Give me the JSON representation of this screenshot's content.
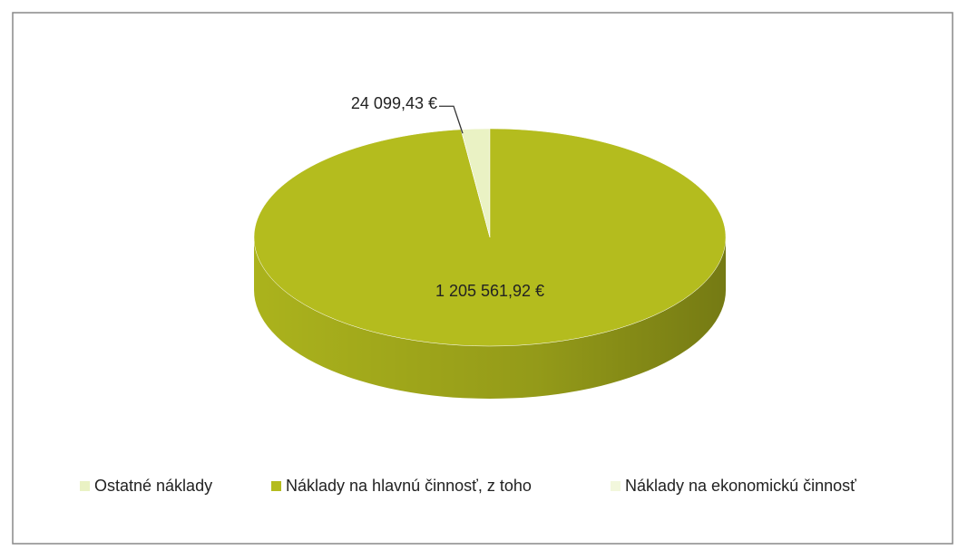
{
  "chart_data": {
    "type": "pie",
    "three_d": true,
    "categories": [
      "Ostatné náklady",
      "Náklady na hlavnú činnosť, z toho",
      "Náklady na ekonomickú činnosť"
    ],
    "values": [
      24099.43,
      1205561.92,
      0
    ],
    "value_labels": [
      "24 099,43 €",
      "1 205 561,92 €",
      null
    ],
    "colors": [
      "#eaf2c4",
      "#b4bc1e",
      "#f2f7dc"
    ],
    "legend": "bottom"
  }
}
